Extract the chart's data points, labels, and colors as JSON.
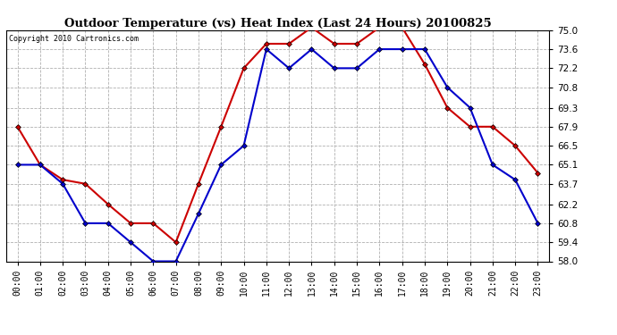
{
  "title": "Outdoor Temperature (vs) Heat Index (Last 24 Hours) 20100825",
  "copyright": "Copyright 2010 Cartronics.com",
  "hours": [
    "00:00",
    "01:00",
    "02:00",
    "03:00",
    "04:00",
    "05:00",
    "06:00",
    "07:00",
    "08:00",
    "09:00",
    "10:00",
    "11:00",
    "12:00",
    "13:00",
    "14:00",
    "15:00",
    "16:00",
    "17:00",
    "18:00",
    "19:00",
    "20:00",
    "21:00",
    "22:00",
    "23:00"
  ],
  "temp": [
    65.1,
    65.1,
    63.7,
    60.8,
    60.8,
    59.4,
    58.0,
    58.0,
    61.5,
    65.1,
    66.5,
    73.6,
    72.2,
    73.6,
    72.2,
    72.2,
    73.6,
    73.6,
    73.6,
    70.8,
    69.3,
    65.1,
    64.0,
    60.8
  ],
  "heat_index": [
    67.9,
    65.1,
    64.0,
    63.7,
    62.2,
    60.8,
    60.8,
    59.4,
    63.7,
    67.9,
    72.2,
    74.0,
    74.0,
    75.2,
    74.0,
    74.0,
    75.2,
    75.2,
    72.5,
    69.3,
    67.9,
    67.9,
    66.5,
    64.5
  ],
  "temp_color": "#0000cc",
  "heat_color": "#cc0000",
  "bg_color": "#ffffff",
  "grid_color": "#b0b0b0",
  "ylim_min": 58.0,
  "ylim_max": 75.0,
  "yticks": [
    58.0,
    59.4,
    60.8,
    62.2,
    63.7,
    65.1,
    66.5,
    67.9,
    69.3,
    70.8,
    72.2,
    73.6,
    75.0
  ]
}
